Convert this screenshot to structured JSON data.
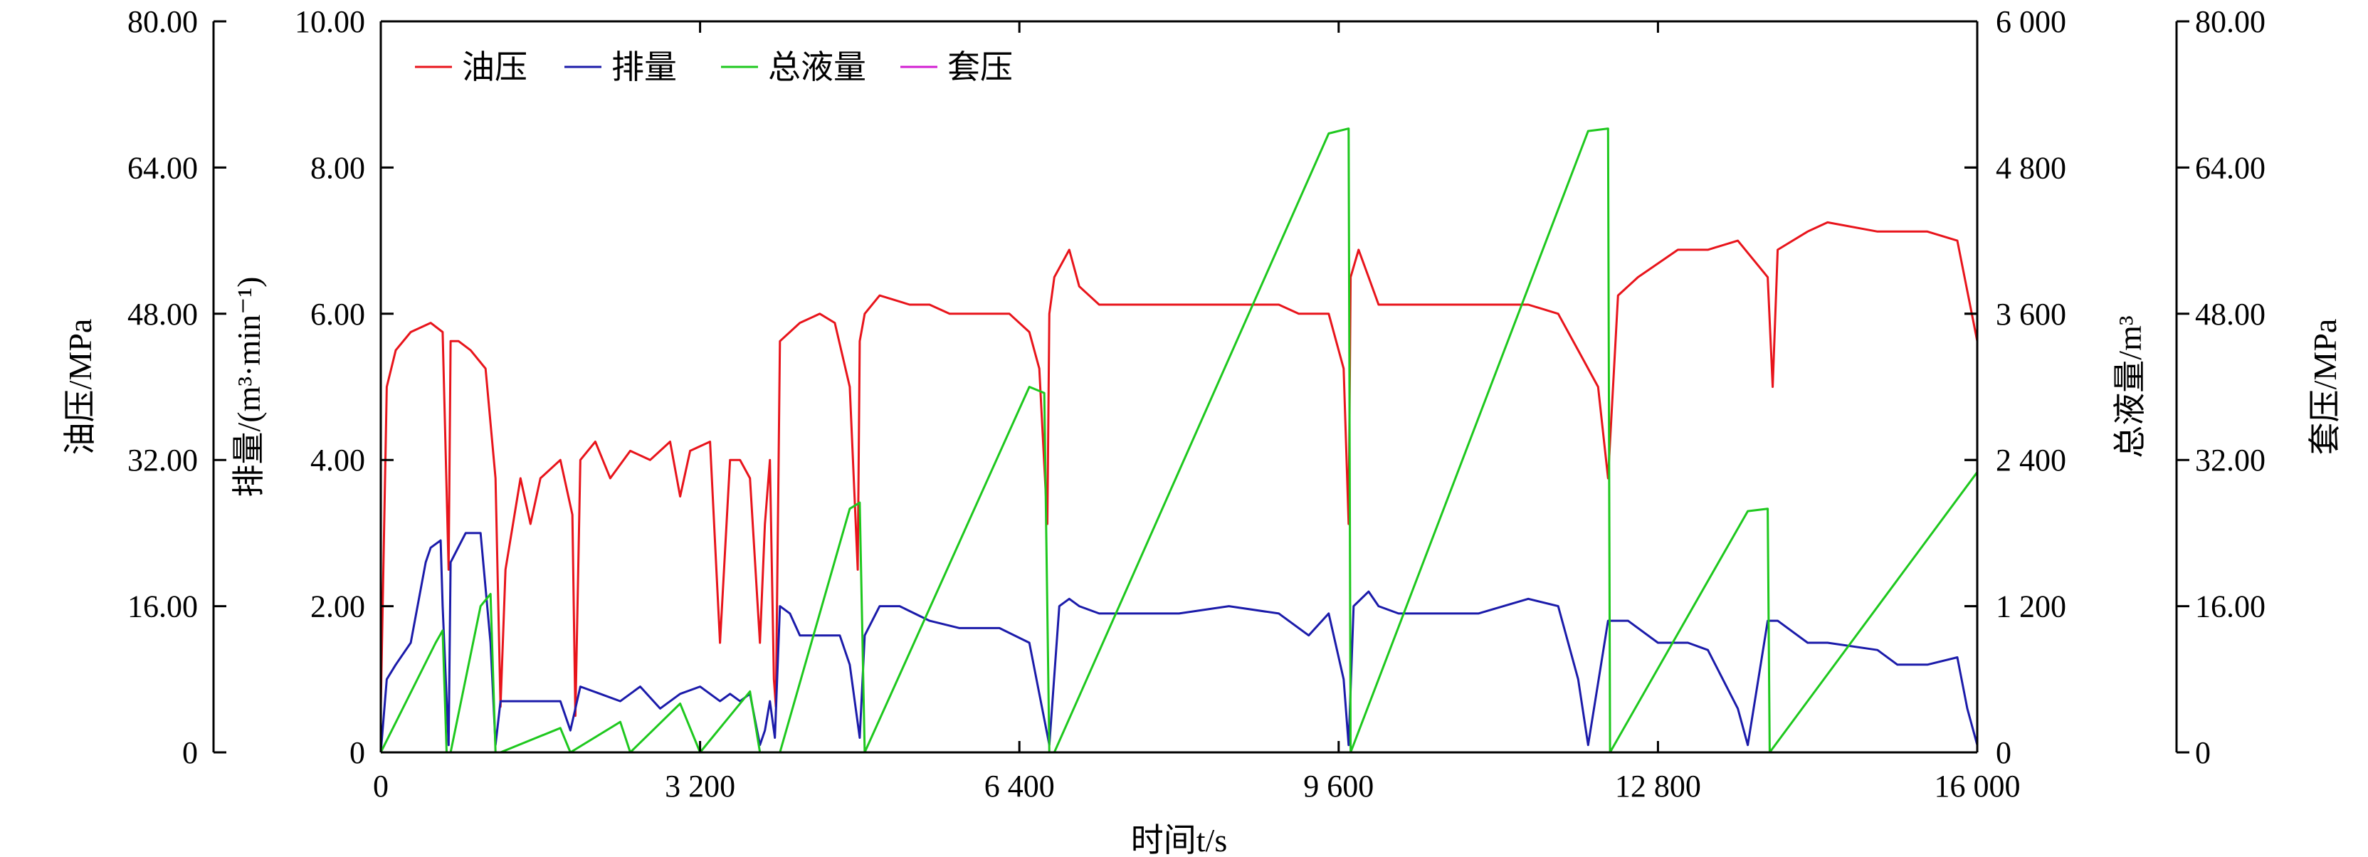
{
  "chart_data": {
    "type": "line",
    "x_axis": {
      "label": "时间t/s",
      "range": [
        0,
        16000
      ],
      "ticks": [
        0,
        3200,
        6400,
        9600,
        12800,
        16000
      ],
      "tick_labels": [
        "0",
        "3 200",
        "6 400",
        "9 600",
        "12 800",
        "16 000"
      ]
    },
    "y_axes": {
      "oil_pressure": {
        "label": "油压/MPa",
        "range": [
          0,
          80
        ],
        "ticks": [
          0,
          16,
          32,
          48,
          64,
          80
        ],
        "tick_labels": [
          "0",
          "16.00",
          "32.00",
          "48.00",
          "64.00",
          "80.00"
        ]
      },
      "rate": {
        "label": "排量/(m³·min⁻¹)",
        "range": [
          0,
          10
        ],
        "ticks": [
          0,
          2,
          4,
          6,
          8,
          10
        ],
        "tick_labels": [
          "0",
          "2.00",
          "4.00",
          "6.00",
          "8.00",
          "10.00"
        ]
      },
      "total_volume": {
        "label": "总液量/m³",
        "range": [
          0,
          6000
        ],
        "ticks": [
          0,
          1200,
          2400,
          3600,
          4800,
          6000
        ],
        "tick_labels": [
          "0",
          "1 200",
          "2 400",
          "3 600",
          "4 800",
          "6 000"
        ]
      },
      "casing_pressure": {
        "label": "套压/MPa",
        "range": [
          0,
          80
        ],
        "ticks": [
          0,
          16,
          32,
          48,
          64,
          80
        ],
        "tick_labels": [
          "0",
          "16.00",
          "32.00",
          "48.00",
          "64.00",
          "80.00"
        ]
      }
    },
    "legend_position": "top-left",
    "series": [
      {
        "name": "油压",
        "axis": "oil_pressure",
        "color": "#e8141b",
        "x": [
          0,
          60,
          150,
          300,
          500,
          620,
          680,
          700,
          780,
          900,
          1050,
          1150,
          1200,
          1250,
          1400,
          1500,
          1600,
          1800,
          1920,
          1950,
          2000,
          2150,
          2300,
          2500,
          2700,
          2900,
          3000,
          3100,
          3300,
          3400,
          3500,
          3600,
          3700,
          3800,
          3850,
          3900,
          3940,
          3960,
          4000,
          4200,
          4400,
          4550,
          4700,
          4780,
          4800,
          4850,
          5000,
          5300,
          5500,
          5700,
          6000,
          6300,
          6500,
          6600,
          6680,
          6700,
          6750,
          6900,
          7000,
          7200,
          7500,
          8000,
          8500,
          9000,
          9200,
          9500,
          9650,
          9700,
          9720,
          9800,
          9900,
          10000,
          10200,
          10500,
          11000,
          11500,
          11800,
          12000,
          12200,
          12300,
          12400,
          12600,
          13000,
          13300,
          13600,
          13900,
          13950,
          14000,
          14300,
          14500,
          15000,
          15500,
          15800,
          16000
        ],
        "y": [
          5,
          40,
          44,
          46,
          47,
          46,
          20,
          45,
          45,
          44,
          42,
          30,
          5,
          20,
          30,
          25,
          30,
          32,
          26,
          4,
          32,
          34,
          30,
          33,
          32,
          34,
          28,
          33,
          34,
          12,
          32,
          32,
          30,
          12,
          25,
          32,
          8,
          5,
          45,
          47,
          48,
          47,
          40,
          20,
          45,
          48,
          50,
          49,
          49,
          48,
          48,
          48,
          46,
          42,
          25,
          48,
          52,
          55,
          51,
          49,
          49,
          49,
          49,
          49,
          48,
          48,
          42,
          25,
          52,
          55,
          52,
          49,
          49,
          49,
          49,
          49,
          48,
          44,
          40,
          30,
          50,
          52,
          55,
          55,
          56,
          52,
          40,
          55,
          57,
          58,
          57,
          57,
          56,
          45
        ]
      },
      {
        "name": "排量",
        "axis": "rate",
        "color": "#1b1baa",
        "x": [
          0,
          60,
          150,
          300,
          450,
          500,
          600,
          620,
          680,
          700,
          850,
          1000,
          1100,
          1150,
          1200,
          1500,
          1800,
          1900,
          2000,
          2200,
          2400,
          2600,
          2800,
          3000,
          3200,
          3400,
          3500,
          3600,
          3700,
          3800,
          3850,
          3900,
          3950,
          4000,
          4100,
          4200,
          4400,
          4600,
          4700,
          4800,
          4850,
          5000,
          5200,
          5500,
          5800,
          6200,
          6500,
          6700,
          6800,
          6900,
          7000,
          7200,
          7500,
          8000,
          8500,
          9000,
          9300,
          9500,
          9650,
          9700,
          9750,
          9900,
          10000,
          10200,
          10500,
          11000,
          11500,
          11800,
          12000,
          12100,
          12300,
          12500,
          12800,
          13100,
          13300,
          13600,
          13700,
          13900,
          14000,
          14300,
          14500,
          15000,
          15200,
          15500,
          15800,
          15900,
          16000
        ],
        "y": [
          0,
          1.0,
          1.2,
          1.5,
          2.6,
          2.8,
          2.9,
          2.0,
          0.1,
          2.6,
          3.0,
          3.0,
          1.5,
          0.1,
          0.7,
          0.7,
          0.7,
          0.3,
          0.9,
          0.8,
          0.7,
          0.9,
          0.6,
          0.8,
          0.9,
          0.7,
          0.8,
          0.7,
          0.8,
          0.1,
          0.3,
          0.7,
          0.2,
          2.0,
          1.9,
          1.6,
          1.6,
          1.6,
          1.2,
          0.2,
          1.6,
          2.0,
          2.0,
          1.8,
          1.7,
          1.7,
          1.5,
          0.1,
          2.0,
          2.1,
          2.0,
          1.9,
          1.9,
          1.9,
          2.0,
          1.9,
          1.6,
          1.9,
          1.0,
          0.1,
          2.0,
          2.2,
          2.0,
          1.9,
          1.9,
          1.9,
          2.1,
          2.0,
          1.0,
          0.1,
          1.8,
          1.8,
          1.5,
          1.5,
          1.4,
          0.6,
          0.1,
          1.8,
          1.8,
          1.5,
          1.5,
          1.4,
          1.2,
          1.2,
          1.3,
          0.6,
          0.1
        ]
      },
      {
        "name": "总液量",
        "axis": "total_volume",
        "color": "#1ec81e",
        "x": [
          0,
          550,
          620,
          660,
          700,
          1000,
          1100,
          1150,
          1200,
          1800,
          1900,
          2400,
          2500,
          3000,
          3200,
          3700,
          3800,
          3850,
          4000,
          4700,
          4800,
          4850,
          6500,
          6650,
          6700,
          6750,
          9500,
          9700,
          9720,
          12100,
          12300,
          12320,
          13700,
          13900,
          13920,
          16000
        ],
        "y": [
          0,
          900,
          1000,
          0,
          0,
          1200,
          1300,
          0,
          0,
          200,
          0,
          250,
          0,
          400,
          0,
          500,
          0,
          0,
          0,
          2000,
          2050,
          0,
          3000,
          2950,
          0,
          0,
          5080,
          5120,
          0,
          5100,
          5120,
          0,
          1980,
          2000,
          0,
          2300
        ]
      },
      {
        "name": "套压",
        "axis": "casing_pressure",
        "color": "#d21ed2",
        "x": [
          0,
          16000
        ],
        "y": [
          0,
          0
        ]
      }
    ]
  }
}
